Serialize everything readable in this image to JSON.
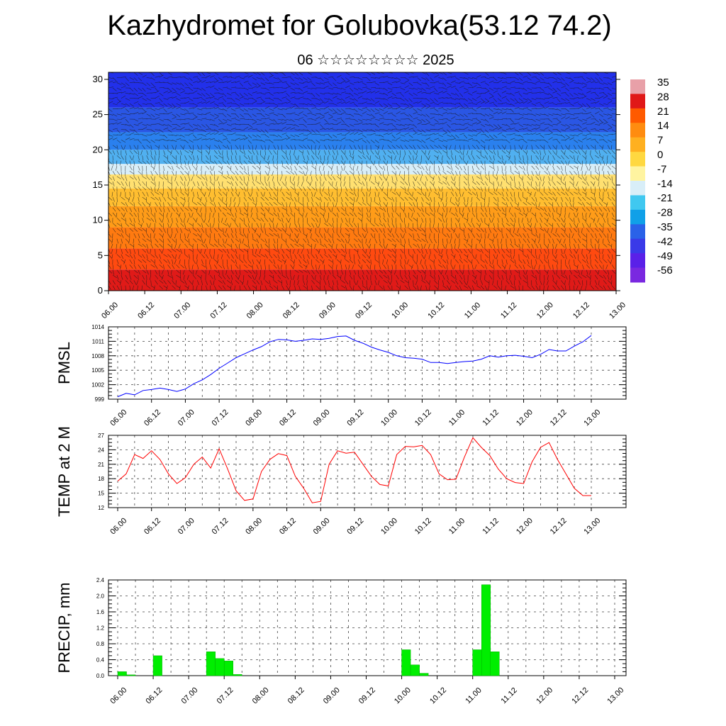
{
  "title": "Kazhydromet for Golubovka(53.12 74.2)",
  "subtitle": "06 ☆☆☆☆☆☆☆☆ 2025",
  "time_labels": [
    "06.00",
    "06.12",
    "07.00",
    "07.12",
    "08.00",
    "08.12",
    "09.00",
    "09.12",
    "10.00",
    "10.12",
    "11.00",
    "11.12",
    "12.00",
    "12.12",
    "13.00"
  ],
  "chart_data": [
    {
      "type": "heatmap",
      "name": "upper-air",
      "ylim": [
        0,
        30
      ],
      "y_ticks": [
        0,
        5,
        10,
        15,
        20,
        25,
        30
      ],
      "colorbar": {
        "labels": [
          "35",
          "28",
          "21",
          "14",
          "7",
          "0",
          "-7",
          "-14",
          "-21",
          "-28",
          "-35",
          "-42",
          "-49",
          "-56"
        ],
        "colors": [
          "#e8a0a8",
          "#e01818",
          "#ff5a00",
          "#ff8c10",
          "#ffb020",
          "#ffd840",
          "#fff4a0",
          "#d8eef8",
          "#40c8f0",
          "#10a0e8",
          "#2a62e8",
          "#3a3ae8",
          "#5a20e8",
          "#7a28e0"
        ]
      },
      "color_bands": [
        {
          "from": 0,
          "to": 3,
          "color": "#e01a18"
        },
        {
          "from": 3,
          "to": 6,
          "color": "#ff4a10"
        },
        {
          "from": 6,
          "to": 9,
          "color": "#ff7a10"
        },
        {
          "from": 9,
          "to": 12,
          "color": "#ff9c18"
        },
        {
          "from": 12,
          "to": 14.5,
          "color": "#ffbe30"
        },
        {
          "from": 14.5,
          "to": 16.5,
          "color": "#ffe070"
        },
        {
          "from": 16.5,
          "to": 18,
          "color": "#d8eef8"
        },
        {
          "from": 18,
          "to": 20,
          "color": "#50b0f0"
        },
        {
          "from": 20,
          "to": 22.5,
          "color": "#2a80ee"
        },
        {
          "from": 22.5,
          "to": 26,
          "color": "#2a56e4"
        },
        {
          "from": 26,
          "to": 31,
          "color": "#2230ea"
        }
      ]
    },
    {
      "type": "line",
      "name": "pmsl",
      "ylabel": "PMSL",
      "ylim": [
        999,
        1014
      ],
      "y_ticks": [
        999,
        1002,
        1005,
        1008,
        1011,
        1014
      ],
      "color": "#0000ff",
      "x": [
        0,
        3,
        6,
        9,
        12,
        15,
        18,
        21,
        24,
        27,
        30,
        33,
        36,
        39,
        42,
        45,
        48,
        51,
        54,
        57,
        60,
        63,
        66,
        69,
        72,
        75,
        78,
        81,
        84,
        87,
        90,
        93,
        96,
        99,
        102,
        105,
        108,
        111,
        114,
        117,
        120,
        123,
        126,
        129,
        132,
        135,
        138,
        141,
        144,
        147,
        150,
        153,
        156,
        159,
        162,
        165,
        168
      ],
      "values": [
        999.5,
        1000.2,
        999.9,
        1000.8,
        1001.0,
        1001.3,
        1001.0,
        1000.6,
        1001.1,
        1002.2,
        1003.0,
        1004.1,
        1005.4,
        1006.5,
        1007.6,
        1008.4,
        1009.2,
        1009.9,
        1010.9,
        1011.4,
        1011.3,
        1011.0,
        1011.2,
        1011.5,
        1011.4,
        1011.6,
        1012.0,
        1012.1,
        1011.2,
        1010.6,
        1009.8,
        1009.2,
        1008.7,
        1008.0,
        1007.6,
        1007.5,
        1007.3,
        1006.6,
        1006.6,
        1006.4,
        1006.6,
        1006.8,
        1006.9,
        1007.3,
        1008.0,
        1007.7,
        1008.0,
        1008.1,
        1007.9,
        1007.6,
        1008.3,
        1009.3,
        1009.0,
        1009.0,
        1010.0,
        1010.9,
        1012.2
      ]
    },
    {
      "type": "line",
      "name": "temp",
      "ylabel": "TEMP at 2 M",
      "ylim": [
        12,
        27
      ],
      "y_ticks": [
        12,
        15,
        18,
        21,
        24,
        27
      ],
      "color": "#ff0000",
      "x": [
        0,
        3,
        6,
        9,
        12,
        15,
        18,
        21,
        24,
        27,
        30,
        33,
        36,
        39,
        42,
        45,
        48,
        51,
        54,
        57,
        60,
        63,
        66,
        69,
        72,
        75,
        78,
        81,
        84,
        87,
        90,
        93,
        96,
        99,
        102,
        105,
        108,
        111,
        114,
        117,
        120,
        123,
        126,
        129,
        132,
        135,
        138,
        141,
        144,
        147,
        150,
        153,
        156,
        159,
        162,
        165,
        168
      ],
      "values": [
        17.5,
        19.0,
        23.0,
        22.2,
        23.8,
        22.0,
        19.0,
        17.0,
        18.2,
        21.0,
        22.5,
        20.2,
        24.2,
        20.0,
        15.5,
        13.5,
        13.8,
        19.5,
        22.0,
        23.2,
        22.8,
        18.5,
        16.0,
        13.0,
        13.3,
        21.0,
        23.8,
        23.3,
        23.5,
        21.0,
        18.5,
        16.8,
        16.5,
        23.0,
        24.7,
        24.6,
        24.9,
        23.0,
        19.0,
        17.8,
        17.9,
        22.5,
        26.5,
        24.5,
        22.8,
        20.0,
        18.0,
        17.2,
        17.0,
        21.5,
        24.5,
        25.5,
        22.0,
        19.0,
        16.0,
        14.5,
        14.5
      ]
    },
    {
      "type": "bar",
      "name": "precip",
      "ylabel": "PRECIP, mm",
      "ylim": [
        0,
        2.4
      ],
      "y_ticks": [
        "0.0",
        "0.4",
        "0.8",
        "1.2",
        "1.6",
        "2.0",
        "2.4"
      ],
      "color": "#00ee00",
      "x": [
        0,
        3,
        6,
        9,
        12,
        15,
        18,
        21,
        24,
        27,
        30,
        33,
        36,
        39,
        42,
        45,
        48,
        51,
        54,
        57,
        60,
        63,
        66,
        69,
        72,
        75,
        78,
        81,
        84,
        87,
        90,
        93,
        96,
        99,
        102,
        105,
        108,
        111,
        114,
        117,
        120,
        123,
        126,
        129,
        132,
        135,
        138,
        141,
        144,
        147,
        150,
        153,
        156,
        159,
        162,
        165
      ],
      "values": [
        0.1,
        0.02,
        0,
        0,
        0.5,
        0,
        0,
        0,
        0,
        0,
        0.6,
        0.43,
        0.37,
        0.03,
        0,
        0,
        0,
        0,
        0,
        0,
        0,
        0,
        0,
        0,
        0,
        0,
        0,
        0,
        0,
        0,
        0,
        0,
        0.65,
        0.27,
        0.06,
        0,
        0,
        0,
        0,
        0,
        0.65,
        2.28,
        0.6,
        0,
        0,
        0,
        0,
        0,
        0,
        0,
        0,
        0,
        0,
        0,
        0,
        0
      ]
    }
  ]
}
